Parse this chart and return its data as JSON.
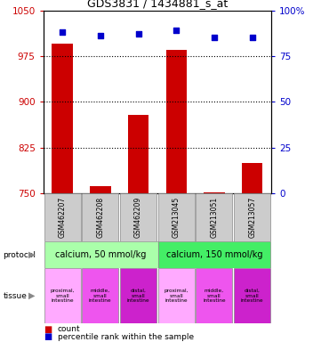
{
  "title": "GDS3831 / 1434881_s_at",
  "samples": [
    "GSM462207",
    "GSM462208",
    "GSM462209",
    "GSM213045",
    "GSM213051",
    "GSM213057"
  ],
  "counts": [
    995,
    762,
    878,
    985,
    752,
    800
  ],
  "percentiles": [
    88,
    86,
    87,
    89,
    85,
    85
  ],
  "ylim_left": [
    750,
    1050
  ],
  "ylim_right": [
    0,
    100
  ],
  "yticks_left": [
    750,
    825,
    900,
    975,
    1050
  ],
  "yticks_right": [
    0,
    25,
    50,
    75,
    100
  ],
  "bar_color": "#cc0000",
  "dot_color": "#0000cc",
  "protocol_labels": [
    "calcium, 50 mmol/kg",
    "calcium, 150 mmol/kg"
  ],
  "protocol_color_1": "#aaffaa",
  "protocol_color_2": "#44ee66",
  "tissue_colors": [
    "#ffaaff",
    "#ee55ee",
    "#cc22cc",
    "#ffaaff",
    "#ee55ee",
    "#cc22cc"
  ],
  "tissue_labels": [
    "proximal,\nsmall\nintestine",
    "middle,\nsmall\nintestine",
    "distal,\nsmall\nintestine",
    "proximal,\nsmall\nintestine",
    "middle,\nsmall\nintestine",
    "distal,\nsmall\nintestine"
  ],
  "sample_bg": "#cccccc",
  "legend_red": "count",
  "legend_blue": "percentile rank within the sample"
}
